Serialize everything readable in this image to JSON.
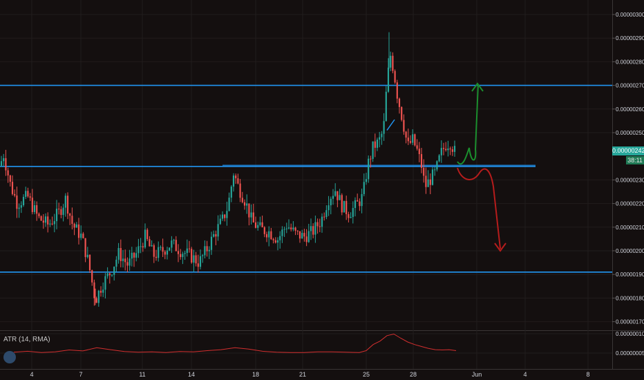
{
  "chart_data": [
    {
      "type": "candlestick",
      "title": "",
      "ylim": [
        1.655e-06,
        3.05e-06
      ],
      "y_ticks": [
        "0.00000300",
        "0.00000290",
        "0.00000280",
        "0.00000270",
        "0.00000260",
        "0.00000250",
        "0.00000230",
        "0.00000220",
        "0.00000210",
        "0.00000200",
        "0.00000190",
        "0.00000180",
        "0.00000170"
      ],
      "x_ticks": [
        "4",
        "7",
        "11",
        "14",
        "18",
        "21",
        "25",
        "28",
        "Jun",
        "4",
        "8"
      ],
      "last_price": "0.00000242",
      "countdown": "38:11",
      "colors": {
        "up": "#26a69a",
        "down": "#ef5350",
        "level_line": "#2196f3",
        "bull_arrow": "#1b8f2e",
        "bear_arrow": "#b71c1c",
        "axis_text": "#d1d4dc",
        "grid": "#211c1c"
      },
      "horizontal_levels": [
        2.7e-06,
        2.357e-06,
        1.91e-06
      ],
      "close_path": [
        {
          "x": 0,
          "y": 2.36e-06
        },
        {
          "x": 5,
          "y": 2.41e-06
        },
        {
          "x": 15,
          "y": 2.28e-06
        },
        {
          "x": 25,
          "y": 2.2e-06
        },
        {
          "x": 40,
          "y": 2.23e-06
        },
        {
          "x": 55,
          "y": 2.14e-06
        },
        {
          "x": 70,
          "y": 2.11e-06
        },
        {
          "x": 85,
          "y": 2.16e-06
        },
        {
          "x": 95,
          "y": 2.22e-06
        },
        {
          "x": 105,
          "y": 2.11e-06
        },
        {
          "x": 118,
          "y": 2.06e-06
        },
        {
          "x": 128,
          "y": 1.95e-06
        },
        {
          "x": 138,
          "y": 1.79e-06
        },
        {
          "x": 148,
          "y": 1.86e-06
        },
        {
          "x": 160,
          "y": 1.91e-06
        },
        {
          "x": 172,
          "y": 1.99e-06
        },
        {
          "x": 185,
          "y": 1.94e-06
        },
        {
          "x": 198,
          "y": 1.99e-06
        },
        {
          "x": 210,
          "y": 2.06e-06
        },
        {
          "x": 222,
          "y": 1.98e-06
        },
        {
          "x": 235,
          "y": 2e-06
        },
        {
          "x": 248,
          "y": 2.03e-06
        },
        {
          "x": 262,
          "y": 2e-06
        },
        {
          "x": 275,
          "y": 1.98e-06
        },
        {
          "x": 288,
          "y": 1.95e-06
        },
        {
          "x": 300,
          "y": 2.01e-06
        },
        {
          "x": 312,
          "y": 2.08e-06
        },
        {
          "x": 322,
          "y": 2.13e-06
        },
        {
          "x": 330,
          "y": 2.19e-06
        },
        {
          "x": 338,
          "y": 2.33e-06
        },
        {
          "x": 345,
          "y": 2.27e-06
        },
        {
          "x": 355,
          "y": 2.21e-06
        },
        {
          "x": 365,
          "y": 2.12e-06
        },
        {
          "x": 378,
          "y": 2.09e-06
        },
        {
          "x": 390,
          "y": 2.08e-06
        },
        {
          "x": 402,
          "y": 2.05e-06
        },
        {
          "x": 415,
          "y": 2.11e-06
        },
        {
          "x": 428,
          "y": 2.07e-06
        },
        {
          "x": 440,
          "y": 2.06e-06
        },
        {
          "x": 452,
          "y": 2.08e-06
        },
        {
          "x": 465,
          "y": 2.13e-06
        },
        {
          "x": 475,
          "y": 2.22e-06
        },
        {
          "x": 485,
          "y": 2.26e-06
        },
        {
          "x": 495,
          "y": 2.19e-06
        },
        {
          "x": 505,
          "y": 2.16e-06
        },
        {
          "x": 515,
          "y": 2.19e-06
        },
        {
          "x": 525,
          "y": 2.23e-06
        },
        {
          "x": 532,
          "y": 2.36e-06
        },
        {
          "x": 540,
          "y": 2.44e-06
        },
        {
          "x": 548,
          "y": 2.46e-06
        },
        {
          "x": 555,
          "y": 2.51e-06
        },
        {
          "x": 560,
          "y": 2.71e-06
        },
        {
          "x": 565,
          "y": 2.83e-06
        },
        {
          "x": 570,
          "y": 2.76e-06
        },
        {
          "x": 575,
          "y": 2.66e-06
        },
        {
          "x": 580,
          "y": 2.59e-06
        },
        {
          "x": 585,
          "y": 2.52e-06
        },
        {
          "x": 590,
          "y": 2.44e-06
        },
        {
          "x": 597,
          "y": 2.47e-06
        },
        {
          "x": 603,
          "y": 2.43e-06
        },
        {
          "x": 610,
          "y": 2.36e-06
        },
        {
          "x": 615,
          "y": 2.27e-06
        },
        {
          "x": 622,
          "y": 2.3e-06
        },
        {
          "x": 630,
          "y": 2.33e-06
        },
        {
          "x": 638,
          "y": 2.41e-06
        },
        {
          "x": 645,
          "y": 2.45e-06
        },
        {
          "x": 652,
          "y": 2.46e-06
        },
        {
          "x": 658,
          "y": 2.42e-06
        }
      ]
    },
    {
      "type": "line",
      "title": "ATR (14, RMA)",
      "y_ticks": [
        "0.00000010",
        "0.00000005"
      ],
      "series": [
        {
          "color": "#d32f2f",
          "points": [
            {
              "x": 20,
              "y": 4.4e-09
            },
            {
              "x": 40,
              "y": 4.7e-09
            },
            {
              "x": 60,
              "y": 4.3e-09
            },
            {
              "x": 80,
              "y": 4.5e-09
            },
            {
              "x": 100,
              "y": 5.1e-09
            },
            {
              "x": 120,
              "y": 4.8e-09
            },
            {
              "x": 140,
              "y": 5.8e-09
            },
            {
              "x": 160,
              "y": 5.2e-09
            },
            {
              "x": 180,
              "y": 4.6e-09
            },
            {
              "x": 200,
              "y": 4.4e-09
            },
            {
              "x": 220,
              "y": 4.5e-09
            },
            {
              "x": 240,
              "y": 4.3e-09
            },
            {
              "x": 260,
              "y": 4.6e-09
            },
            {
              "x": 280,
              "y": 4.5e-09
            },
            {
              "x": 300,
              "y": 4.9e-09
            },
            {
              "x": 320,
              "y": 5.2e-09
            },
            {
              "x": 340,
              "y": 5.8e-09
            },
            {
              "x": 360,
              "y": 5.4e-09
            },
            {
              "x": 380,
              "y": 4.7e-09
            },
            {
              "x": 400,
              "y": 4.4e-09
            },
            {
              "x": 420,
              "y": 4.3e-09
            },
            {
              "x": 440,
              "y": 4.3e-09
            },
            {
              "x": 460,
              "y": 4.5e-09
            },
            {
              "x": 480,
              "y": 4.5e-09
            },
            {
              "x": 500,
              "y": 4.4e-09
            },
            {
              "x": 520,
              "y": 4.3e-09
            },
            {
              "x": 530,
              "y": 4.9e-09
            },
            {
              "x": 540,
              "y": 6.8e-09
            },
            {
              "x": 550,
              "y": 7.9e-09
            },
            {
              "x": 560,
              "y": 9.6e-09
            },
            {
              "x": 570,
              "y": 1.01e-08
            },
            {
              "x": 580,
              "y": 8.8e-09
            },
            {
              "x": 590,
              "y": 7.6e-09
            },
            {
              "x": 600,
              "y": 6.8e-09
            },
            {
              "x": 610,
              "y": 6.2e-09
            },
            {
              "x": 620,
              "y": 5.6e-09
            },
            {
              "x": 630,
              "y": 5.2e-09
            },
            {
              "x": 640,
              "y": 5.1e-09
            },
            {
              "x": 650,
              "y": 5.2e-09
            },
            {
              "x": 660,
              "y": 4.9e-09
            }
          ]
        }
      ]
    }
  ]
}
